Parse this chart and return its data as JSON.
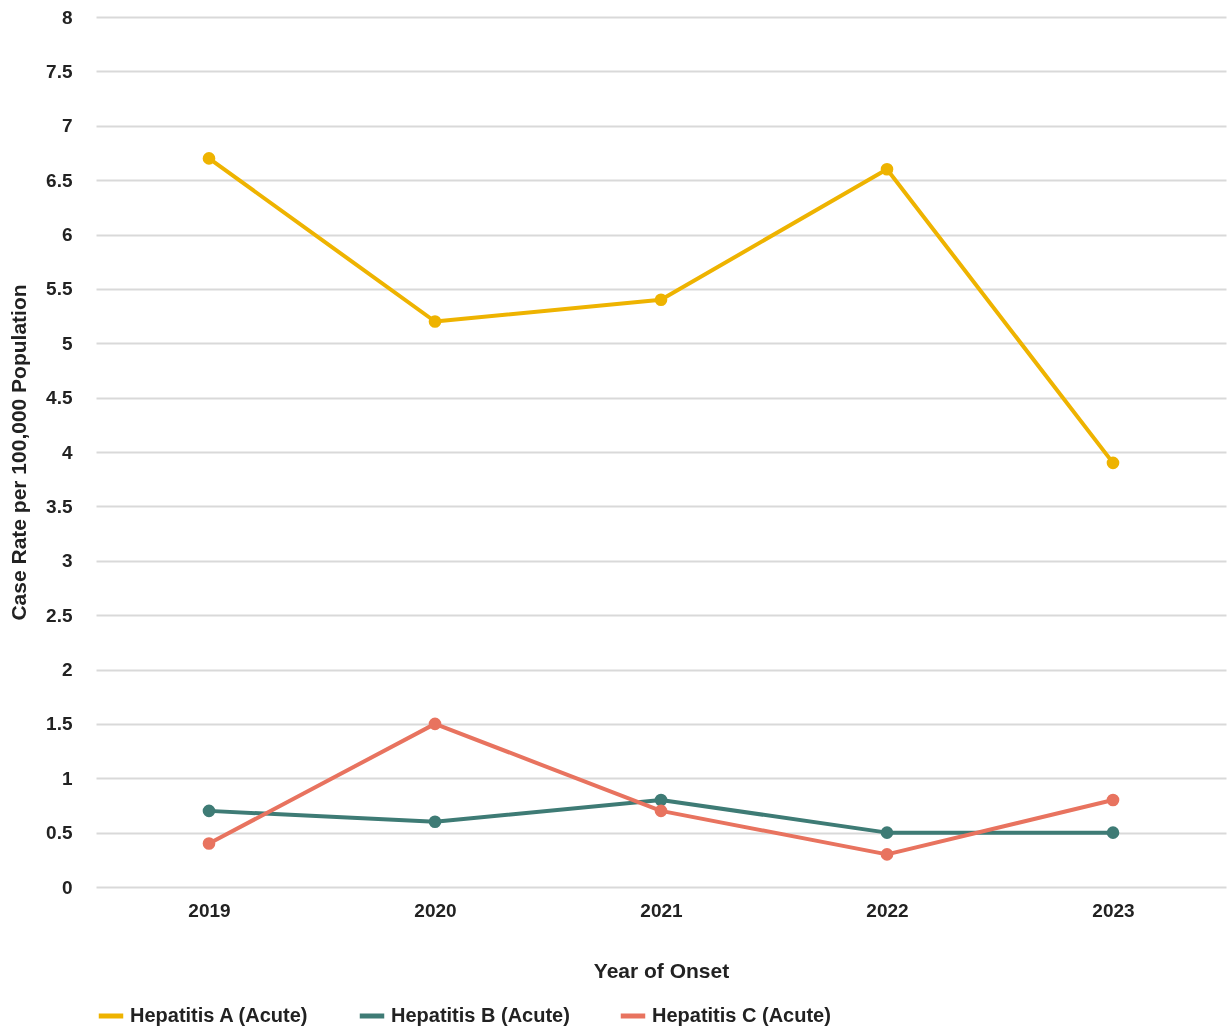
{
  "chart_data": {
    "type": "line",
    "xlabel": "Year of Onset",
    "ylabel": "Case Rate per 100,000 Population",
    "categories": [
      "2019",
      "2020",
      "2021",
      "2022",
      "2023"
    ],
    "series": [
      {
        "name": "Hepatitis A (Acute)",
        "color": "#eeb300",
        "values": [
          6.7,
          5.2,
          5.4,
          6.6,
          3.9
        ]
      },
      {
        "name": "Hepatitis B (Acute)",
        "color": "#3e7b75",
        "values": [
          0.7,
          0.6,
          0.8,
          0.5,
          0.5
        ]
      },
      {
        "name": "Hepatitis C (Acute)",
        "color": "#e8735f",
        "values": [
          0.4,
          1.5,
          0.7,
          0.3,
          0.8
        ]
      }
    ],
    "ylim": [
      0,
      8
    ],
    "yticks": [
      0,
      0.5,
      1,
      1.5,
      2,
      2.5,
      3,
      3.5,
      4,
      4.5,
      5,
      5.5,
      6,
      6.5,
      7,
      7.5,
      8
    ],
    "grid": "y",
    "legend": "bottom",
    "marker": "circle"
  }
}
